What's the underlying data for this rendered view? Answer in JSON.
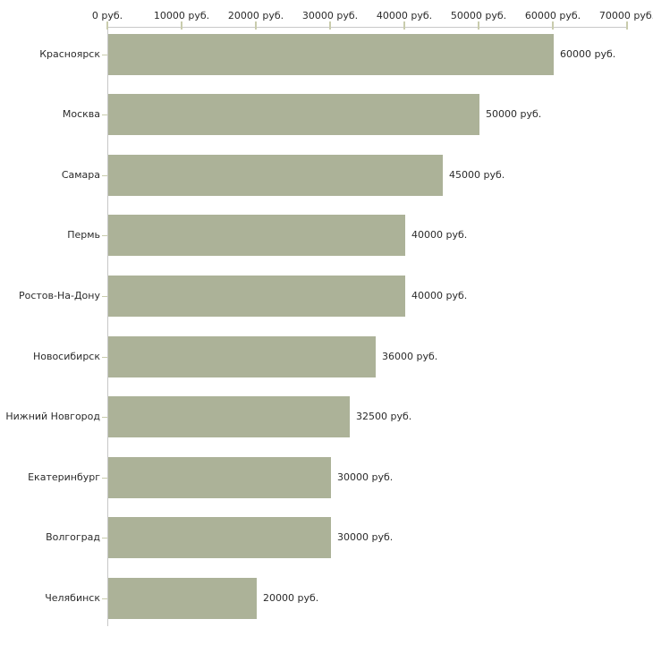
{
  "chart": {
    "axis": {
      "tick_labels": [
        "0 руб.",
        "10000 руб.",
        "20000 руб.",
        "30000 руб.",
        "40000 руб.",
        "50000 руб.",
        "60000 руб.",
        "70000 руб."
      ],
      "tick_values": [
        0,
        10000,
        20000,
        30000,
        40000,
        50000,
        60000,
        70000
      ]
    }
  },
  "chart_data": {
    "type": "bar",
    "orientation": "horizontal",
    "title": "",
    "xlabel": "",
    "ylabel": "",
    "categories": [
      "Красноярск",
      "Москва",
      "Самара",
      "Пермь",
      "Ростов-На-Дону",
      "Новосибирск",
      "Нижний Новгород",
      "Екатеринбург",
      "Волгоград",
      "Челябинск"
    ],
    "values": [
      60000,
      50000,
      45000,
      40000,
      40000,
      36000,
      32500,
      30000,
      30000,
      20000
    ],
    "value_labels": [
      "60000 руб.",
      "50000 руб.",
      "45000 руб.",
      "40000 руб.",
      "40000 руб.",
      "36000 руб.",
      "32500 руб.",
      "30000 руб.",
      "30000 руб.",
      "20000 руб."
    ],
    "xlim": [
      0,
      70000
    ],
    "x_axis_position": "top",
    "grid": false,
    "legend": false,
    "unit_suffix": " руб.",
    "colors": {
      "bar": "#acb298",
      "axis_line": "#c8c8c8",
      "tick": "#c9ccad",
      "text": "#2b2b2b",
      "background": "#ffffff"
    }
  }
}
